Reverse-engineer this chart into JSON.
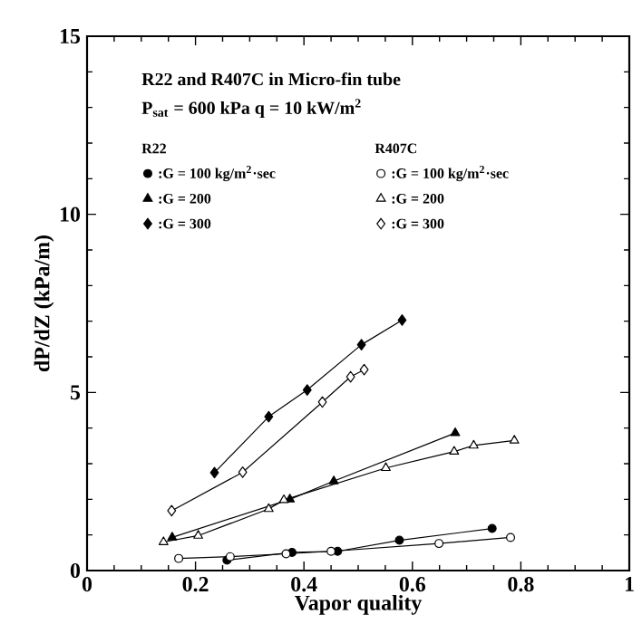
{
  "chart_data": {
    "type": "line",
    "title": "R22 and R407C in Micro-fin tube",
    "subtitle": "P$_{sat}$ = 600 kPa    q = 10 kW/m$^{2}$",
    "xlabel": "Vapor quality",
    "ylabel": "dP/dZ (kPa/m)",
    "annotations": [
      "R22",
      "R407C"
    ],
    "xlim": [
      0,
      1
    ],
    "ylim": [
      0,
      15
    ],
    "xticks": [
      0,
      0.2,
      0.4,
      0.6,
      0.8,
      1
    ],
    "yticks": [
      0,
      5,
      10,
      15
    ],
    "legend": "top left",
    "grid": false,
    "line_style": "solid",
    "series": [
      {
        "name": ":G = 100 kg/m$^{2}$·sec",
        "color": "#000000",
        "marker": "circle",
        "x": [
          0.258,
          0.378,
          0.462,
          0.576,
          0.747
        ],
        "values": [
          0.29,
          0.51,
          0.54,
          0.85,
          1.18
        ]
      },
      {
        "name": ":G = 200",
        "color": "#000000",
        "marker": "triangle",
        "x": [
          0.157,
          0.374,
          0.455,
          0.679
        ],
        "values": [
          0.93,
          2.0,
          2.51,
          3.86
        ]
      },
      {
        "name": ":G = 300",
        "color": "#000000",
        "marker": "diamond",
        "x": [
          0.235,
          0.335,
          0.406,
          0.506,
          0.581
        ],
        "values": [
          2.75,
          4.32,
          5.07,
          6.34,
          7.03
        ]
      },
      {
        "name": ":G = 100 kg/m$^{2}$·sec",
        "color": "#000000",
        "marker": "circle",
        "x": [
          0.169,
          0.264,
          0.367,
          0.45,
          0.649,
          0.781
        ],
        "values": [
          0.34,
          0.39,
          0.47,
          0.54,
          0.76,
          0.93
        ]
      },
      {
        "name": ":G = 200",
        "color": "#000000",
        "marker": "triangle",
        "x": [
          0.141,
          0.205,
          0.335,
          0.363,
          0.551,
          0.677,
          0.713,
          0.788
        ],
        "values": [
          0.8,
          0.98,
          1.73,
          1.98,
          2.88,
          3.34,
          3.51,
          3.65
        ]
      },
      {
        "name": ":G = 300",
        "color": "#000000",
        "marker": "diamond",
        "x": [
          0.156,
          0.287,
          0.434,
          0.486,
          0.511
        ],
        "values": [
          1.68,
          2.76,
          4.73,
          5.44,
          5.64
        ]
      }
    ]
  }
}
